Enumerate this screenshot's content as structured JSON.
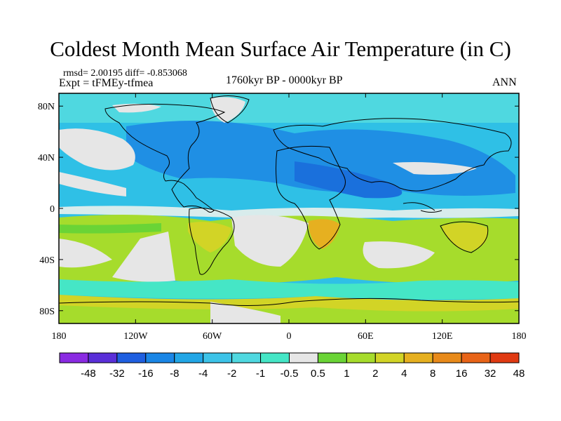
{
  "title": "Coldest Month Mean Surface Air Temperature (in C)",
  "stats": "rmsd= 2.00195 diff= -0.853068",
  "experiment": "Expt = tFMEy-tfmea",
  "period": "1760kyr BP - 0000kyr BP",
  "season": "ANN",
  "map": {
    "x_ticks": [
      "180",
      "120W",
      "60W",
      "0",
      "60E",
      "120E",
      "180"
    ],
    "y_ticks": [
      "80N",
      "40N",
      "0",
      "40S",
      "80S"
    ],
    "lon_range": [
      -180,
      180
    ],
    "lat_range": [
      -90,
      90
    ]
  },
  "colorbar": {
    "labels": [
      "-48",
      "-32",
      "-16",
      "-8",
      "-4",
      "-2",
      "-1",
      "-0.5",
      "0.5",
      "1",
      "2",
      "4",
      "8",
      "16",
      "32",
      "48"
    ],
    "colors": [
      "#8a2be2",
      "#5a2fd8",
      "#1f5fe0",
      "#1a86e6",
      "#22a6e6",
      "#3cc3e8",
      "#4fd8e0",
      "#45e6c6",
      "#e6e6e6",
      "#6ad436",
      "#a6dc2c",
      "#d2d426",
      "#e6b020",
      "#e88a1a",
      "#e86418",
      "#e03a12"
    ]
  }
}
